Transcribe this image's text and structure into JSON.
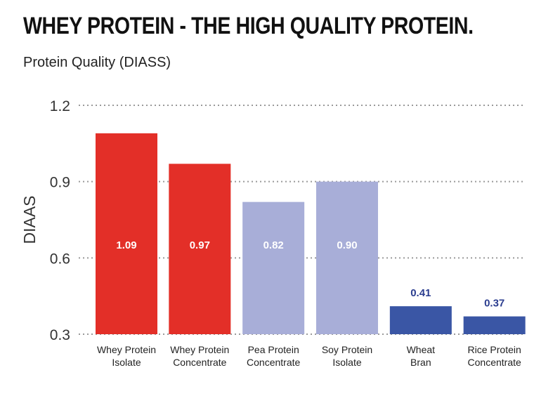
{
  "title": "WHEY PROTEIN - THE HIGH QUALITY PROTEIN.",
  "subtitle": "Protein Quality (DIASS)",
  "chart_data": {
    "type": "bar",
    "title": "WHEY PROTEIN - THE HIGH QUALITY PROTEIN.",
    "subtitle": "Protein Quality (DIASS)",
    "xlabel": "",
    "ylabel": "DIAAS",
    "ylim": [
      0.3,
      1.2
    ],
    "yticks": [
      "1.2",
      "0.9",
      "0.6",
      "0.3"
    ],
    "grid": "horizontal dotted",
    "categories": [
      [
        "Whey Protein",
        "Isolate"
      ],
      [
        "Whey Protein",
        "Concentrate"
      ],
      [
        "Pea Protein",
        "Concentrate"
      ],
      [
        "Soy Protein",
        "Isolate"
      ],
      [
        "Wheat",
        "Bran"
      ],
      [
        "Rice Protein",
        "Concentrate"
      ]
    ],
    "values": [
      1.09,
      0.97,
      0.82,
      0.9,
      0.41,
      0.37
    ],
    "labels": [
      "1.09",
      "0.97",
      "0.82",
      "0.90",
      "0.41",
      "0.37"
    ],
    "colors": [
      "#e32f28",
      "#e32f28",
      "#a8aed8",
      "#a8aed8",
      "#3a56a5",
      "#3a56a5"
    ],
    "label_colors": [
      "#ffffff",
      "#ffffff",
      "#ffffff",
      "#ffffff",
      "#2b3d8f",
      "#2b3d8f"
    ]
  }
}
